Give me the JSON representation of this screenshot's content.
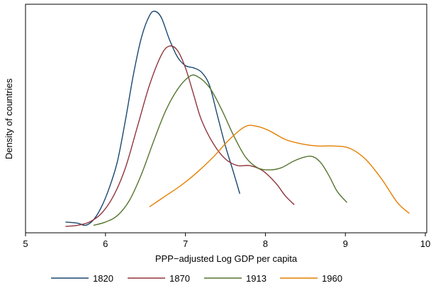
{
  "chart_data": {
    "type": "line",
    "title": "",
    "xlabel": "PPP−adjusted Log GDP per capita",
    "ylabel": "Density of countries",
    "xlim": [
      5,
      10
    ],
    "x_ticks": [
      "5",
      "6",
      "7",
      "8",
      "9",
      "10"
    ],
    "x_tick_values": [
      5,
      6,
      7,
      8,
      9,
      10
    ],
    "y_ticks": [],
    "ylim": [
      0,
      1
    ],
    "grid": false,
    "legend_position": "bottom",
    "series": [
      {
        "name": "1820",
        "color": "#1a476f",
        "x": [
          5.5,
          5.65,
          5.75,
          5.85,
          5.95,
          6.05,
          6.15,
          6.25,
          6.35,
          6.45,
          6.55,
          6.62,
          6.7,
          6.8,
          6.9,
          7.0,
          7.1,
          7.2,
          7.3,
          7.4,
          7.5,
          7.6,
          7.68
        ],
        "y": [
          0.03,
          0.025,
          0.015,
          0.04,
          0.1,
          0.19,
          0.31,
          0.5,
          0.71,
          0.88,
          0.98,
          1.0,
          0.97,
          0.87,
          0.79,
          0.75,
          0.74,
          0.72,
          0.66,
          0.52,
          0.38,
          0.26,
          0.16
        ]
      },
      {
        "name": "1870",
        "color": "#90353b",
        "x": [
          5.5,
          5.65,
          5.8,
          5.95,
          6.1,
          6.25,
          6.4,
          6.55,
          6.7,
          6.8,
          6.9,
          7.0,
          7.1,
          7.2,
          7.35,
          7.5,
          7.65,
          7.8,
          7.95,
          8.05,
          8.15,
          8.25,
          8.36
        ],
        "y": [
          0.01,
          0.015,
          0.03,
          0.07,
          0.15,
          0.28,
          0.47,
          0.66,
          0.8,
          0.84,
          0.82,
          0.74,
          0.62,
          0.5,
          0.39,
          0.32,
          0.29,
          0.29,
          0.27,
          0.24,
          0.2,
          0.15,
          0.11
        ]
      },
      {
        "name": "1913",
        "color": "#55752f",
        "x": [
          5.85,
          6.0,
          6.15,
          6.3,
          6.45,
          6.6,
          6.75,
          6.9,
          7.05,
          7.15,
          7.3,
          7.45,
          7.6,
          7.75,
          7.9,
          8.05,
          8.2,
          8.35,
          8.5,
          8.6,
          8.7,
          8.8,
          8.9,
          9.02
        ],
        "y": [
          0.015,
          0.03,
          0.06,
          0.13,
          0.25,
          0.4,
          0.54,
          0.64,
          0.7,
          0.7,
          0.65,
          0.55,
          0.43,
          0.33,
          0.28,
          0.27,
          0.28,
          0.31,
          0.33,
          0.33,
          0.3,
          0.24,
          0.17,
          0.12
        ]
      },
      {
        "name": "1960",
        "color": "#e37e00",
        "x": [
          6.55,
          6.75,
          6.95,
          7.15,
          7.35,
          7.55,
          7.75,
          7.9,
          8.05,
          8.25,
          8.45,
          8.65,
          8.85,
          9.05,
          9.25,
          9.45,
          9.65,
          9.8
        ],
        "y": [
          0.1,
          0.15,
          0.2,
          0.26,
          0.33,
          0.41,
          0.47,
          0.47,
          0.45,
          0.41,
          0.39,
          0.38,
          0.38,
          0.37,
          0.32,
          0.23,
          0.12,
          0.07
        ]
      }
    ]
  }
}
